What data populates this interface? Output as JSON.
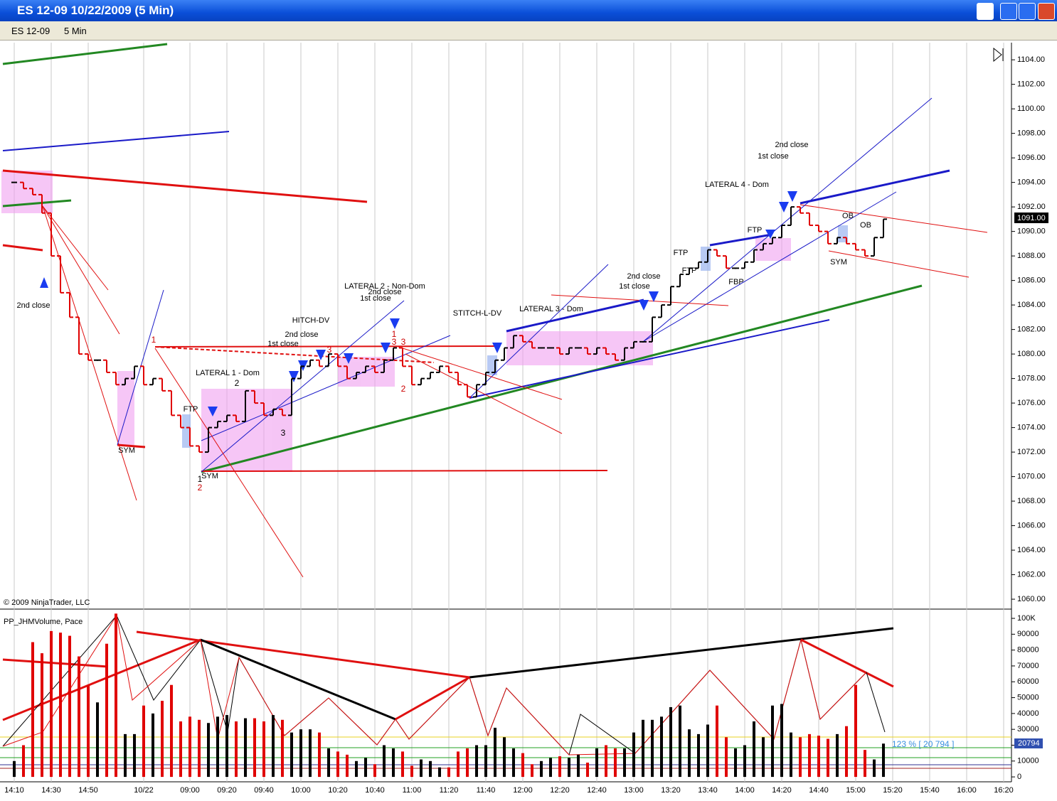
{
  "window": {
    "title": "ES 12-09  10/22/2009 (5 Min)",
    "instrument": "ES 12-09",
    "interval": "5 Min",
    "copyright": "© 2009 NinjaTrader, LLC",
    "last_price_label": "1091.00",
    "volume_label": "20794",
    "pace_label": "123 % [ 20 794 ]"
  },
  "annotations": [
    "2nd close",
    "SYM",
    "FTP",
    "SYM",
    "LATERAL 1 - Dom",
    "1st close",
    "2nd close",
    "HITCH-DV",
    "LATERAL 2 - Non-Dom",
    "2nd close",
    "1st close",
    "STITCH-L-DV",
    "LATERAL 3 - Dom",
    "2nd close",
    "1st close",
    "FTP",
    "FTP",
    "FBP",
    "FTP",
    "LATERAL 4 - Dom",
    "1st close",
    "2nd close",
    "OB",
    "OB",
    "SYM",
    "1",
    "2",
    "3",
    "3",
    "1",
    "3",
    "3",
    "2",
    "1",
    "2"
  ],
  "chart_data": [
    {
      "type": "price-bar",
      "up_color": "#000000",
      "down_color": "#e00000",
      "categories": [
        "14:10",
        null,
        null,
        null,
        "14:30",
        null,
        null,
        null,
        "14:50",
        null,
        null,
        null,
        null,
        null,
        "10/22",
        null,
        null,
        null,
        null,
        "09:00",
        null,
        null,
        null,
        "09:20",
        null,
        null,
        null,
        "09:40",
        null,
        null,
        null,
        "10:00",
        null,
        null,
        null,
        "10:20",
        null,
        null,
        null,
        "10:40",
        null,
        null,
        null,
        "11:00",
        null,
        null,
        null,
        "11:20",
        null,
        null,
        null,
        "11:40",
        null,
        null,
        null,
        "12:00",
        null,
        null,
        null,
        "12:20",
        null,
        null,
        null,
        "12:40",
        null,
        null,
        null,
        "13:00",
        null,
        null,
        null,
        "13:20",
        null,
        null,
        null,
        "13:40",
        null,
        null,
        null,
        "14:00",
        null,
        null,
        null,
        "14:20",
        null,
        null,
        null,
        "14:40",
        null,
        null,
        null,
        "15:00",
        null,
        null,
        null,
        "15:20",
        null,
        null,
        null,
        "15:40",
        null,
        null,
        null,
        "16:00",
        null,
        null,
        null,
        "16:20"
      ],
      "values": [
        1094,
        1093.5,
        1093,
        1091.5,
        1088,
        1085,
        1083,
        1080,
        1079.5,
        1079.5,
        1078.5,
        1077.5,
        1078,
        1079,
        1077.5,
        1078,
        1077,
        1075,
        1074,
        1072.5,
        1072,
        1074,
        1074.5,
        1075,
        1074.5,
        1077,
        1076,
        1075,
        1075.5,
        1075,
        1078,
        1079,
        1079.5,
        1079,
        1080,
        1079,
        1078,
        1078.5,
        1079,
        1078.5,
        1079.5,
        1080.5,
        1079,
        1077.5,
        1078,
        1078.5,
        1079,
        1078.5,
        1077.5,
        1076.5,
        1077.5,
        1078.5,
        1079.5,
        1080.5,
        1081.5,
        1081,
        1080.5,
        1080.5,
        1080.5,
        1080,
        1080.5,
        1080.5,
        1080,
        1080.5,
        1080,
        1079.5,
        1080.5,
        1081,
        1081,
        1083,
        1084,
        1085.5,
        1086.5,
        1087,
        1087.5,
        1088.5,
        1088,
        1087,
        1087,
        1087.5,
        1088.5,
        1089,
        1089.5,
        1090.5,
        1092,
        1091.5,
        1090.5,
        1090,
        1089,
        1089.5,
        1089,
        1088.5,
        1088,
        1089.5,
        1091,
        null,
        null,
        null,
        null,
        null,
        null,
        null,
        null,
        null,
        null,
        null,
        null,
        null
      ],
      "ylim": [
        1059.25,
        1105.4
      ],
      "yticks": [
        {
          "value": 1060,
          "label": "1060.00"
        },
        {
          "value": 1062,
          "label": "1062.00"
        },
        {
          "value": 1064,
          "label": "1064.00"
        },
        {
          "value": 1066,
          "label": "1066.00"
        },
        {
          "value": 1068,
          "label": "1068.00"
        },
        {
          "value": 1070,
          "label": "1070.00"
        },
        {
          "value": 1072,
          "label": "1072.00"
        },
        {
          "value": 1074,
          "label": "1074.00"
        },
        {
          "value": 1076,
          "label": "1076.00"
        },
        {
          "value": 1078,
          "label": "1078.00"
        },
        {
          "value": 1080,
          "label": "1080.00"
        },
        {
          "value": 1082,
          "label": "1082.00"
        },
        {
          "value": 1084,
          "label": "1084.00"
        },
        {
          "value": 1086,
          "label": "1086.00"
        },
        {
          "value": 1088,
          "label": "1088.00"
        },
        {
          "value": 1090,
          "label": "1090.00"
        },
        {
          "value": 1092,
          "label": "1092.00"
        },
        {
          "value": 1094,
          "label": "1094.00"
        },
        {
          "value": 1096,
          "label": "1096.00"
        },
        {
          "value": 1098,
          "label": "1098.00"
        },
        {
          "value": 1100,
          "label": "1100.00"
        },
        {
          "value": 1102,
          "label": "1102.00"
        },
        {
          "value": 1104,
          "label": "1104.00"
        }
      ]
    },
    {
      "type": "volume-bar",
      "title": "PP_JHMVolume, Pace",
      "values": [
        10000,
        20000,
        85000,
        78000,
        92000,
        91000,
        89000,
        76000,
        58000,
        47000,
        84000,
        103000,
        27000,
        27000,
        45000,
        40000,
        48000,
        58000,
        35000,
        38000,
        36000,
        34000,
        38000,
        39000,
        35000,
        37000,
        37000,
        35000,
        39000,
        36000,
        28000,
        30000,
        30000,
        28000,
        18000,
        16000,
        14000,
        10000,
        12000,
        8000,
        20000,
        18000,
        16000,
        7000,
        11000,
        10000,
        6000,
        6000,
        16000,
        18000,
        20000,
        20000,
        31000,
        25000,
        18000,
        15000,
        8000,
        10000,
        12000,
        13000,
        12000,
        14000,
        9000,
        18000,
        20000,
        18000,
        18000,
        28000,
        36000,
        36000,
        38000,
        44000,
        45000,
        30000,
        27000,
        33000,
        45000,
        25000,
        18000,
        20000,
        35000,
        25000,
        45000,
        46000,
        28000,
        25000,
        27000,
        26000,
        24000,
        27000,
        32000,
        58000,
        17000,
        11000,
        21000,
        null,
        null,
        null,
        null,
        null,
        null,
        null,
        null,
        null,
        null,
        null,
        null,
        null
      ],
      "ylim": [
        -3100,
        104500
      ],
      "yticks": [
        0,
        10000,
        20000,
        30000,
        40000,
        50000,
        60000,
        70000,
        80000,
        90000,
        {
          "value": 100000,
          "label": "100K"
        }
      ]
    }
  ]
}
